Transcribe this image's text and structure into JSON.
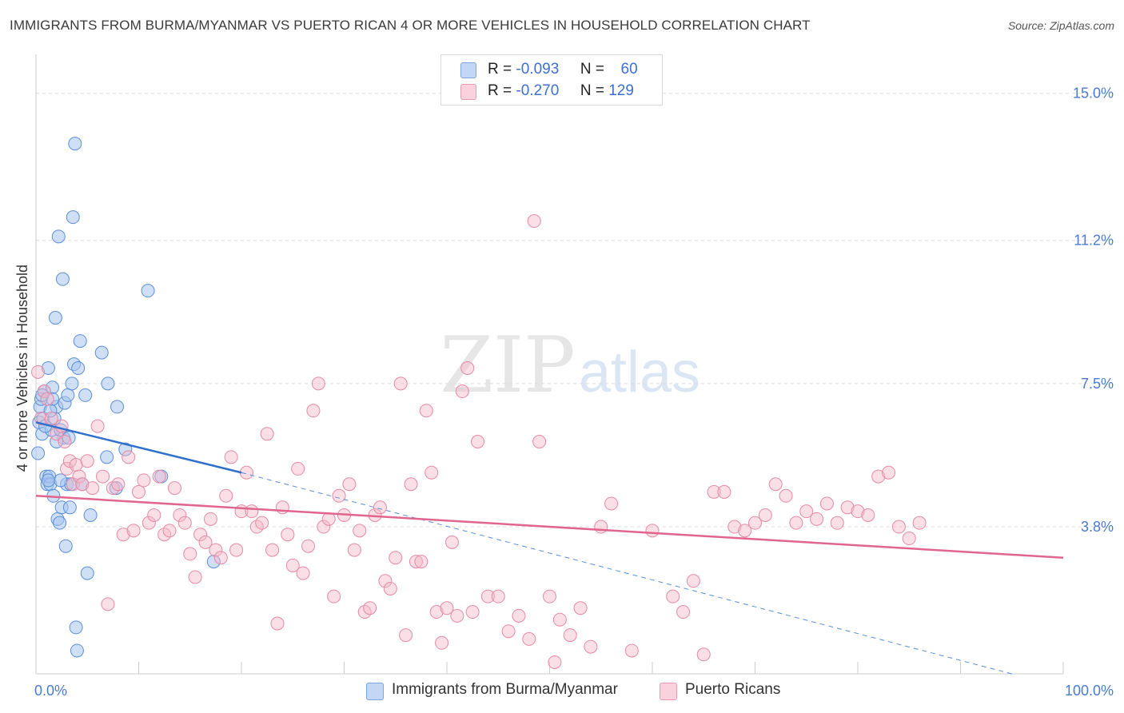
{
  "title": "IMMIGRANTS FROM BURMA/MYANMAR VS PUERTO RICAN 4 OR MORE VEHICLES IN HOUSEHOLD CORRELATION CHART",
  "source": "Source: ZipAtlas.com",
  "watermark": {
    "zip": "ZIP",
    "atlas": "atlas"
  },
  "legend_top": [
    {
      "r_label": "R =",
      "r_value": "-0.093",
      "n_label": "N =",
      "n_value": "60",
      "color": "#a8c4ee"
    },
    {
      "r_label": "R =",
      "r_value": "-0.270",
      "n_label": "N =",
      "n_value": "129",
      "color": "#f5b8c8"
    }
  ],
  "legend_bottom": [
    {
      "label": "Immigrants from Burma/Myanmar",
      "color": "#a8c4ee"
    },
    {
      "label": "Puerto Ricans",
      "color": "#f5b8c8"
    }
  ],
  "chart_data": {
    "type": "scatter",
    "title": "IMMIGRANTS FROM BURMA/MYANMAR VS PUERTO RICAN 4 OR MORE VEHICLES IN HOUSEHOLD CORRELATION CHART",
    "xlabel": "",
    "ylabel": "4 or more Vehicles in Household",
    "xlim": [
      0,
      100
    ],
    "ylim": [
      0,
      15.8
    ],
    "x_tick_labels": [
      {
        "value": 0,
        "label": "0.0%"
      },
      {
        "value": 100,
        "label": "100.0%"
      }
    ],
    "y_ticks": [
      {
        "value": 3.8,
        "label": "3.8%"
      },
      {
        "value": 7.5,
        "label": "7.5%"
      },
      {
        "value": 11.2,
        "label": "11.2%"
      },
      {
        "value": 15.0,
        "label": "15.0%"
      }
    ],
    "x_minor_ticks": [
      0,
      10,
      20,
      30,
      40,
      50,
      60,
      70,
      80,
      90,
      100
    ],
    "grid": true,
    "series": [
      {
        "name": "Immigrants from Burma/Myanmar",
        "color": "#7aa6e6",
        "stroke": "#5b8fd9",
        "R": -0.093,
        "N": 60,
        "trend_solid": {
          "x": [
            0,
            20
          ],
          "y": [
            6.5,
            5.2
          ]
        },
        "trend_dashed": {
          "x": [
            20,
            95
          ],
          "y": [
            5.2,
            0.0
          ]
        },
        "points": [
          [
            0.2,
            5.7
          ],
          [
            0.3,
            6.5
          ],
          [
            0.4,
            6.9
          ],
          [
            0.5,
            7.1
          ],
          [
            0.6,
            6.2
          ],
          [
            0.7,
            6.6
          ],
          [
            0.8,
            7.3
          ],
          [
            1.0,
            5.1
          ],
          [
            1.1,
            4.9
          ],
          [
            1.2,
            7.9
          ],
          [
            1.3,
            5.1
          ],
          [
            1.4,
            4.9
          ],
          [
            1.5,
            6.3
          ],
          [
            1.6,
            7.4
          ],
          [
            1.7,
            4.6
          ],
          [
            1.8,
            6.6
          ],
          [
            1.9,
            9.2
          ],
          [
            2.0,
            6.9
          ],
          [
            2.1,
            4.0
          ],
          [
            2.2,
            11.3
          ],
          [
            2.3,
            3.9
          ],
          [
            2.4,
            6.3
          ],
          [
            2.5,
            4.3
          ],
          [
            2.6,
            10.2
          ],
          [
            2.7,
            6.1
          ],
          [
            2.8,
            7.0
          ],
          [
            2.9,
            3.3
          ],
          [
            3.0,
            4.9
          ],
          [
            3.1,
            7.2
          ],
          [
            3.3,
            4.3
          ],
          [
            3.4,
            4.9
          ],
          [
            3.5,
            7.5
          ],
          [
            3.6,
            11.8
          ],
          [
            3.7,
            8.0
          ],
          [
            3.8,
            13.7
          ],
          [
            3.9,
            1.2
          ],
          [
            4.0,
            0.6
          ],
          [
            4.1,
            7.9
          ],
          [
            4.3,
            8.6
          ],
          [
            4.5,
            4.9
          ],
          [
            4.8,
            7.2
          ],
          [
            5.0,
            2.6
          ],
          [
            5.3,
            4.1
          ],
          [
            6.4,
            8.3
          ],
          [
            6.9,
            5.6
          ],
          [
            7.0,
            7.5
          ],
          [
            7.8,
            4.8
          ],
          [
            7.9,
            6.9
          ],
          [
            8.7,
            5.8
          ],
          [
            10.9,
            9.9
          ],
          [
            12.2,
            5.1
          ],
          [
            17.3,
            2.9
          ],
          [
            1.2,
            5.0
          ],
          [
            2.0,
            6.0
          ],
          [
            0.9,
            6.4
          ],
          [
            1.6,
            7.1
          ],
          [
            2.4,
            5.0
          ],
          [
            0.6,
            7.2
          ],
          [
            1.4,
            6.8
          ],
          [
            3.2,
            6.1
          ]
        ]
      },
      {
        "name": "Puerto Ricans",
        "color": "#f5b8c8",
        "stroke": "#e68aa6",
        "R": -0.27,
        "N": 129,
        "trend_solid": {
          "x": [
            0,
            100
          ],
          "y": [
            4.6,
            3.0
          ]
        },
        "points": [
          [
            0.2,
            7.8
          ],
          [
            0.5,
            6.6
          ],
          [
            0.8,
            7.3
          ],
          [
            1.1,
            7.1
          ],
          [
            1.5,
            6.6
          ],
          [
            2.0,
            6.2
          ],
          [
            2.5,
            6.4
          ],
          [
            2.8,
            6.0
          ],
          [
            3.0,
            5.3
          ],
          [
            3.3,
            5.5
          ],
          [
            3.6,
            4.9
          ],
          [
            3.9,
            5.4
          ],
          [
            4.2,
            5.1
          ],
          [
            4.5,
            4.9
          ],
          [
            5.0,
            5.5
          ],
          [
            5.5,
            4.8
          ],
          [
            6.0,
            6.4
          ],
          [
            6.5,
            5.1
          ],
          [
            7.0,
            1.8
          ],
          [
            7.5,
            4.8
          ],
          [
            8.0,
            4.9
          ],
          [
            8.5,
            3.6
          ],
          [
            9.0,
            5.6
          ],
          [
            9.5,
            3.7
          ],
          [
            10.0,
            4.7
          ],
          [
            10.5,
            5.0
          ],
          [
            11.0,
            3.9
          ],
          [
            11.5,
            4.1
          ],
          [
            12.0,
            5.1
          ],
          [
            12.5,
            3.6
          ],
          [
            13.0,
            3.7
          ],
          [
            13.5,
            4.8
          ],
          [
            14.0,
            4.1
          ],
          [
            14.5,
            3.9
          ],
          [
            15.0,
            3.1
          ],
          [
            15.5,
            2.5
          ],
          [
            16.0,
            3.6
          ],
          [
            16.5,
            3.4
          ],
          [
            17.0,
            4.0
          ],
          [
            17.5,
            3.2
          ],
          [
            18.0,
            3.0
          ],
          [
            18.5,
            4.6
          ],
          [
            19.0,
            5.6
          ],
          [
            19.5,
            3.2
          ],
          [
            20.0,
            4.2
          ],
          [
            20.5,
            5.2
          ],
          [
            21.0,
            4.2
          ],
          [
            21.5,
            3.8
          ],
          [
            22.0,
            3.9
          ],
          [
            22.5,
            6.2
          ],
          [
            23.0,
            3.2
          ],
          [
            23.5,
            1.3
          ],
          [
            24.0,
            4.3
          ],
          [
            24.5,
            3.6
          ],
          [
            25.0,
            2.8
          ],
          [
            25.5,
            5.3
          ],
          [
            26.0,
            2.6
          ],
          [
            26.5,
            3.3
          ],
          [
            27.0,
            6.8
          ],
          [
            27.5,
            7.5
          ],
          [
            28.0,
            3.8
          ],
          [
            28.5,
            4.0
          ],
          [
            29.0,
            2.0
          ],
          [
            29.5,
            4.6
          ],
          [
            30.0,
            4.1
          ],
          [
            30.5,
            4.9
          ],
          [
            31.0,
            3.2
          ],
          [
            31.5,
            3.7
          ],
          [
            32.0,
            1.6
          ],
          [
            32.5,
            1.7
          ],
          [
            33.0,
            4.1
          ],
          [
            33.5,
            4.3
          ],
          [
            34.0,
            2.4
          ],
          [
            34.5,
            2.2
          ],
          [
            35.0,
            3.0
          ],
          [
            35.5,
            7.5
          ],
          [
            36.0,
            1.0
          ],
          [
            36.5,
            4.9
          ],
          [
            37.0,
            2.9
          ],
          [
            37.5,
            2.9
          ],
          [
            38.0,
            6.8
          ],
          [
            38.5,
            5.2
          ],
          [
            39.0,
            1.6
          ],
          [
            39.5,
            0.8
          ],
          [
            40.0,
            1.7
          ],
          [
            40.5,
            3.4
          ],
          [
            41.0,
            1.5
          ],
          [
            41.5,
            7.3
          ],
          [
            42.0,
            7.9
          ],
          [
            42.5,
            1.6
          ],
          [
            43.0,
            6.0
          ],
          [
            44.0,
            2.0
          ],
          [
            45.0,
            2.0
          ],
          [
            46.0,
            1.1
          ],
          [
            47.0,
            1.5
          ],
          [
            48.0,
            0.9
          ],
          [
            48.5,
            11.7
          ],
          [
            49.0,
            6.0
          ],
          [
            50.0,
            2.0
          ],
          [
            50.5,
            0.3
          ],
          [
            51.0,
            1.4
          ],
          [
            52.0,
            1.0
          ],
          [
            53.0,
            1.7
          ],
          [
            54.0,
            0.7
          ],
          [
            55.0,
            3.8
          ],
          [
            56.0,
            4.4
          ],
          [
            58.0,
            0.6
          ],
          [
            60.0,
            3.7
          ],
          [
            62.0,
            2.0
          ],
          [
            63.0,
            1.6
          ],
          [
            64.0,
            2.4
          ],
          [
            65.0,
            0.5
          ],
          [
            66.0,
            4.7
          ],
          [
            67.0,
            4.7
          ],
          [
            68.0,
            3.8
          ],
          [
            69.0,
            3.7
          ],
          [
            70.0,
            3.9
          ],
          [
            71.0,
            4.1
          ],
          [
            72.0,
            4.9
          ],
          [
            73.0,
            4.6
          ],
          [
            74.0,
            3.9
          ],
          [
            75.0,
            4.2
          ],
          [
            76.0,
            4.0
          ],
          [
            77.0,
            4.4
          ],
          [
            78.0,
            3.9
          ],
          [
            79.0,
            4.3
          ],
          [
            80.0,
            4.2
          ],
          [
            81.0,
            4.1
          ],
          [
            82.0,
            5.1
          ],
          [
            83.0,
            5.2
          ],
          [
            84.0,
            3.8
          ],
          [
            85.0,
            3.5
          ],
          [
            86.0,
            3.9
          ]
        ]
      }
    ]
  }
}
